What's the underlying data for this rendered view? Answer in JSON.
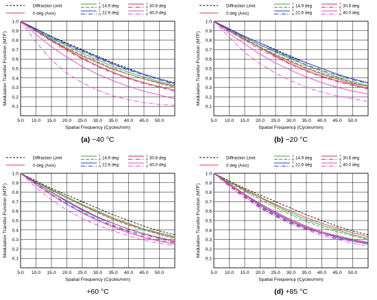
{
  "legend": {
    "diffraction": "Diffraction Limit",
    "axis": "0 deg (Axis)",
    "field_prefix_top": "T",
    "field_prefix_bottom": "R",
    "fields": [
      "14.9 deg",
      "22.6 deg",
      "30.8 deg",
      "40.0 deg"
    ]
  },
  "colors": {
    "diffraction": "#000000",
    "axis": "#e8323c",
    "f14_9": "#3b9e3b",
    "f22_6": "#1f3fbf",
    "f30_8": "#c0305a",
    "f40_0": "#e040d0",
    "grid": "#000000"
  },
  "chart_data": [
    {
      "type": "line",
      "caption_letter": "(a)",
      "caption_temp": "−40 °C",
      "xlabel": "Spatial Frequency (Cycles/mm)",
      "ylabel": "Modulation Transfer Function (MTF)",
      "x_ticks": [
        "5.0",
        "10.0",
        "15.0",
        "20.0",
        "25.0",
        "30.0",
        "35.0",
        "40.0",
        "45.0",
        "50.0"
      ],
      "y_ticks": [
        "0.1",
        "0.2",
        "0.3",
        "0.4",
        "0.5",
        "0.6",
        "0.7",
        "0.8",
        "0.9",
        "1.0"
      ],
      "xlim": [
        5,
        55
      ],
      "ylim": [
        0,
        1
      ],
      "x": [
        5,
        10,
        15,
        20,
        25,
        30,
        35,
        40,
        45,
        50,
        55
      ],
      "series": [
        {
          "name": "Diffraction Limit",
          "key": "diffraction",
          "dash": "3,2",
          "values": [
            1.0,
            0.92,
            0.84,
            0.77,
            0.7,
            0.63,
            0.56,
            0.5,
            0.44,
            0.39,
            0.35
          ]
        },
        {
          "name": "0 deg (Axis)",
          "key": "axis",
          "dash": "",
          "values": [
            1.0,
            0.9,
            0.8,
            0.71,
            0.63,
            0.56,
            0.49,
            0.44,
            0.39,
            0.35,
            0.31
          ]
        },
        {
          "name": "T 14.9 deg",
          "key": "f14_9",
          "dash": "",
          "values": [
            1.0,
            0.91,
            0.82,
            0.74,
            0.66,
            0.59,
            0.52,
            0.46,
            0.41,
            0.36,
            0.32
          ]
        },
        {
          "name": "R 14.9 deg",
          "key": "f14_9",
          "dash": "5,2",
          "values": [
            1.0,
            0.9,
            0.81,
            0.72,
            0.64,
            0.57,
            0.5,
            0.44,
            0.39,
            0.34,
            0.3
          ]
        },
        {
          "name": "T 22.6 deg",
          "key": "f22_6",
          "dash": "",
          "values": [
            1.0,
            0.92,
            0.84,
            0.76,
            0.69,
            0.62,
            0.55,
            0.49,
            0.44,
            0.39,
            0.34
          ]
        },
        {
          "name": "R 22.6 deg",
          "key": "f22_6",
          "dash": "6,2,1,2",
          "values": [
            1.0,
            0.91,
            0.83,
            0.75,
            0.68,
            0.61,
            0.54,
            0.48,
            0.43,
            0.38,
            0.33
          ]
        },
        {
          "name": "T 30.8 deg",
          "key": "f30_8",
          "dash": "",
          "values": [
            1.0,
            0.9,
            0.8,
            0.7,
            0.61,
            0.53,
            0.46,
            0.4,
            0.35,
            0.31,
            0.27
          ]
        },
        {
          "name": "R 30.8 deg",
          "key": "f30_8",
          "dash": "6,2,1,2",
          "values": [
            1.0,
            0.89,
            0.79,
            0.69,
            0.6,
            0.52,
            0.45,
            0.39,
            0.34,
            0.3,
            0.26
          ]
        },
        {
          "name": "T 40.0 deg",
          "key": "f40_0",
          "dash": "",
          "values": [
            1.0,
            0.86,
            0.73,
            0.62,
            0.52,
            0.44,
            0.37,
            0.31,
            0.26,
            0.22,
            0.18
          ]
        },
        {
          "name": "R 40.0 deg",
          "key": "f40_0",
          "dash": "6,2,1,2",
          "values": [
            1.0,
            0.78,
            0.59,
            0.45,
            0.35,
            0.27,
            0.21,
            0.17,
            0.14,
            0.12,
            0.11
          ]
        }
      ]
    },
    {
      "type": "line",
      "caption_letter": "(b)",
      "caption_temp": "−20 °C",
      "xlabel": "Spatial Frequency (Cycles/mm)",
      "ylabel": "Modulation Transfer Function (MTF)",
      "x_ticks": [
        "5.0",
        "10.0",
        "15.0",
        "20.0",
        "25.0",
        "30.0",
        "35.0",
        "40.0",
        "45.0",
        "50.0"
      ],
      "y_ticks": [
        "0.1",
        "0.2",
        "0.3",
        "0.4",
        "0.5",
        "0.6",
        "0.7",
        "0.8",
        "0.9",
        "1.0"
      ],
      "xlim": [
        5,
        55
      ],
      "ylim": [
        0,
        1
      ],
      "x": [
        5,
        10,
        15,
        20,
        25,
        30,
        35,
        40,
        45,
        50,
        55
      ],
      "series": [
        {
          "name": "Diffraction Limit",
          "key": "diffraction",
          "dash": "3,2",
          "values": [
            1.0,
            0.92,
            0.84,
            0.77,
            0.7,
            0.63,
            0.56,
            0.5,
            0.44,
            0.39,
            0.35
          ]
        },
        {
          "name": "0 deg (Axis)",
          "key": "axis",
          "dash": "",
          "values": [
            1.0,
            0.9,
            0.81,
            0.72,
            0.64,
            0.57,
            0.5,
            0.44,
            0.39,
            0.34,
            0.31
          ]
        },
        {
          "name": "T 14.9 deg",
          "key": "f14_9",
          "dash": "",
          "values": [
            1.0,
            0.91,
            0.83,
            0.75,
            0.67,
            0.6,
            0.53,
            0.47,
            0.41,
            0.36,
            0.32
          ]
        },
        {
          "name": "R 14.9 deg",
          "key": "f14_9",
          "dash": "5,2",
          "values": [
            1.0,
            0.91,
            0.82,
            0.73,
            0.65,
            0.58,
            0.51,
            0.45,
            0.4,
            0.35,
            0.31
          ]
        },
        {
          "name": "T 22.6 deg",
          "key": "f22_6",
          "dash": "",
          "values": [
            1.0,
            0.92,
            0.84,
            0.77,
            0.69,
            0.62,
            0.56,
            0.5,
            0.44,
            0.39,
            0.35
          ]
        },
        {
          "name": "R 22.6 deg",
          "key": "f22_6",
          "dash": "6,2,1,2",
          "values": [
            1.0,
            0.91,
            0.83,
            0.75,
            0.68,
            0.61,
            0.54,
            0.48,
            0.43,
            0.38,
            0.34
          ]
        },
        {
          "name": "T 30.8 deg",
          "key": "f30_8",
          "dash": "",
          "values": [
            1.0,
            0.9,
            0.81,
            0.72,
            0.63,
            0.55,
            0.48,
            0.42,
            0.37,
            0.33,
            0.29
          ]
        },
        {
          "name": "R 30.8 deg",
          "key": "f30_8",
          "dash": "6,2,1,2",
          "values": [
            1.0,
            0.89,
            0.8,
            0.7,
            0.62,
            0.54,
            0.47,
            0.41,
            0.36,
            0.32,
            0.28
          ]
        },
        {
          "name": "T 40.0 deg",
          "key": "f40_0",
          "dash": "",
          "values": [
            1.0,
            0.87,
            0.76,
            0.65,
            0.56,
            0.48,
            0.41,
            0.35,
            0.3,
            0.26,
            0.23
          ]
        },
        {
          "name": "R 40.0 deg",
          "key": "f40_0",
          "dash": "6,2,1,2",
          "values": [
            1.0,
            0.83,
            0.67,
            0.55,
            0.45,
            0.37,
            0.3,
            0.25,
            0.21,
            0.18,
            0.15
          ]
        }
      ]
    },
    {
      "type": "line",
      "caption_letter": "",
      "caption_temp": "+60 °C",
      "xlabel": "Spatial Frequency (Cycles/mm)",
      "ylabel": "Modulation Transfer Function (MTF)",
      "x_ticks": [
        "5.0",
        "10.0",
        "15.0",
        "20.0",
        "25.0",
        "30.0",
        "35.0",
        "40.0",
        "45.0",
        "50.0"
      ],
      "y_ticks": [
        "0.1",
        "0.2",
        "0.3",
        "0.4",
        "0.5",
        "0.6",
        "0.7",
        "0.8",
        "0.9",
        "1.0"
      ],
      "xlim": [
        5,
        55
      ],
      "ylim": [
        0,
        1
      ],
      "x": [
        5,
        10,
        15,
        20,
        25,
        30,
        35,
        40,
        45,
        50,
        55
      ],
      "series": [
        {
          "name": "Diffraction Limit",
          "key": "diffraction",
          "dash": "3,2",
          "values": [
            1.0,
            0.92,
            0.84,
            0.77,
            0.7,
            0.63,
            0.56,
            0.5,
            0.44,
            0.39,
            0.35
          ]
        },
        {
          "name": "0 deg (Axis)",
          "key": "axis",
          "dash": "",
          "values": [
            1.0,
            0.91,
            0.82,
            0.74,
            0.66,
            0.59,
            0.52,
            0.46,
            0.41,
            0.36,
            0.32
          ]
        },
        {
          "name": "T 14.9 deg",
          "key": "f14_9",
          "dash": "",
          "values": [
            1.0,
            0.91,
            0.83,
            0.75,
            0.67,
            0.6,
            0.53,
            0.47,
            0.41,
            0.37,
            0.33
          ]
        },
        {
          "name": "R 14.9 deg",
          "key": "f14_9",
          "dash": "5,2",
          "values": [
            1.0,
            0.91,
            0.82,
            0.74,
            0.66,
            0.58,
            0.51,
            0.45,
            0.4,
            0.35,
            0.31
          ]
        },
        {
          "name": "T 22.6 deg",
          "key": "f22_6",
          "dash": "",
          "values": [
            1.0,
            0.9,
            0.8,
            0.7,
            0.61,
            0.53,
            0.47,
            0.41,
            0.36,
            0.32,
            0.28
          ]
        },
        {
          "name": "R 22.6 deg",
          "key": "f22_6",
          "dash": "6,2,1,2",
          "values": [
            1.0,
            0.89,
            0.78,
            0.68,
            0.59,
            0.51,
            0.45,
            0.39,
            0.35,
            0.31,
            0.27
          ]
        },
        {
          "name": "T 30.8 deg",
          "key": "f30_8",
          "dash": "",
          "values": [
            1.0,
            0.9,
            0.8,
            0.71,
            0.62,
            0.54,
            0.47,
            0.41,
            0.36,
            0.32,
            0.28
          ]
        },
        {
          "name": "R 30.8 deg",
          "key": "f30_8",
          "dash": "6,2,1,2",
          "values": [
            1.0,
            0.88,
            0.77,
            0.67,
            0.58,
            0.5,
            0.44,
            0.38,
            0.33,
            0.29,
            0.26
          ]
        },
        {
          "name": "T 40.0 deg",
          "key": "f40_0",
          "dash": "",
          "values": [
            1.0,
            0.88,
            0.77,
            0.67,
            0.58,
            0.5,
            0.43,
            0.37,
            0.32,
            0.28,
            0.25
          ]
        },
        {
          "name": "R 40.0 deg",
          "key": "f40_0",
          "dash": "6,2,1,2",
          "values": [
            1.0,
            0.85,
            0.72,
            0.61,
            0.52,
            0.45,
            0.39,
            0.34,
            0.29,
            0.26,
            0.23
          ]
        }
      ]
    },
    {
      "type": "line",
      "caption_letter": "(d)",
      "caption_temp": "+85 °C",
      "xlabel": "Spatial Frequency (Cycles/mm)",
      "ylabel": "Modulation Transfer Function (MTF)",
      "x_ticks": [
        "5.0",
        "10.0",
        "15.0",
        "20.0",
        "25.0",
        "30.0",
        "35.0",
        "40.0",
        "45.0",
        "50.0"
      ],
      "y_ticks": [
        "0.1",
        "0.2",
        "0.3",
        "0.4",
        "0.5",
        "0.6",
        "0.7",
        "0.8",
        "0.9",
        "1.0"
      ],
      "xlim": [
        5,
        55
      ],
      "ylim": [
        0,
        1
      ],
      "x": [
        5,
        10,
        15,
        20,
        25,
        30,
        35,
        40,
        45,
        50,
        55
      ],
      "series": [
        {
          "name": "Diffraction Limit",
          "key": "diffraction",
          "dash": "3,2",
          "values": [
            1.0,
            0.92,
            0.84,
            0.77,
            0.7,
            0.63,
            0.56,
            0.5,
            0.44,
            0.39,
            0.35
          ]
        },
        {
          "name": "0 deg (Axis)",
          "key": "axis",
          "dash": "",
          "values": [
            1.0,
            0.91,
            0.83,
            0.75,
            0.67,
            0.6,
            0.53,
            0.47,
            0.42,
            0.37,
            0.33
          ]
        },
        {
          "name": "T 14.9 deg",
          "key": "f14_9",
          "dash": "",
          "values": [
            1.0,
            0.91,
            0.82,
            0.74,
            0.66,
            0.58,
            0.51,
            0.45,
            0.4,
            0.35,
            0.31
          ]
        },
        {
          "name": "R 14.9 deg",
          "key": "f14_9",
          "dash": "5,2",
          "values": [
            1.0,
            0.9,
            0.81,
            0.72,
            0.64,
            0.56,
            0.49,
            0.43,
            0.38,
            0.34,
            0.3
          ]
        },
        {
          "name": "T 22.6 deg",
          "key": "f22_6",
          "dash": "",
          "values": [
            1.0,
            0.88,
            0.77,
            0.66,
            0.57,
            0.49,
            0.42,
            0.37,
            0.33,
            0.29,
            0.26
          ]
        },
        {
          "name": "R 22.6 deg",
          "key": "f22_6",
          "dash": "6,2,1,2",
          "values": [
            1.0,
            0.87,
            0.75,
            0.64,
            0.55,
            0.47,
            0.41,
            0.36,
            0.31,
            0.28,
            0.25
          ]
        },
        {
          "name": "T 30.8 deg",
          "key": "f30_8",
          "dash": "",
          "values": [
            1.0,
            0.89,
            0.78,
            0.68,
            0.59,
            0.51,
            0.44,
            0.38,
            0.34,
            0.3,
            0.27
          ]
        },
        {
          "name": "R 30.8 deg",
          "key": "f30_8",
          "dash": "6,2,1,2",
          "values": [
            1.0,
            0.87,
            0.76,
            0.65,
            0.56,
            0.48,
            0.42,
            0.37,
            0.32,
            0.28,
            0.25
          ]
        },
        {
          "name": "T 40.0 deg",
          "key": "f40_0",
          "dash": "",
          "values": [
            1.0,
            0.88,
            0.77,
            0.67,
            0.58,
            0.5,
            0.43,
            0.37,
            0.32,
            0.28,
            0.25
          ]
        },
        {
          "name": "R 40.0 deg",
          "key": "f40_0",
          "dash": "6,2,1,2",
          "values": [
            1.0,
            0.86,
            0.74,
            0.63,
            0.54,
            0.46,
            0.4,
            0.34,
            0.3,
            0.26,
            0.23
          ]
        }
      ]
    }
  ]
}
